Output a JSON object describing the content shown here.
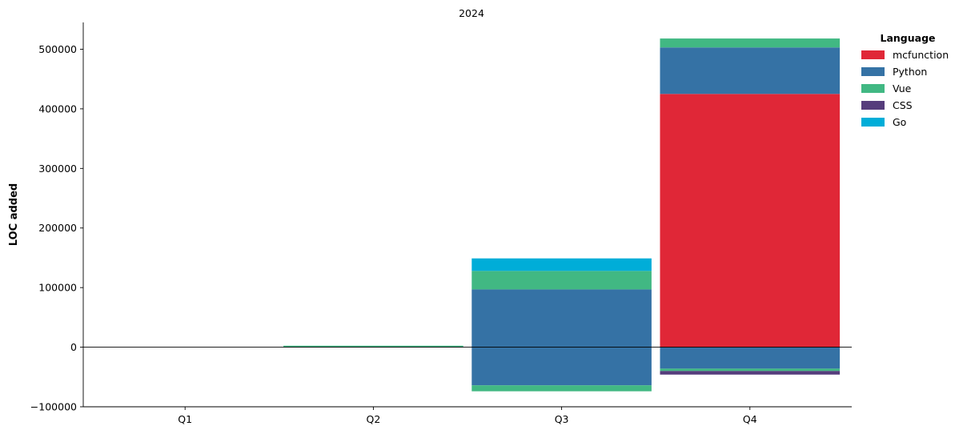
{
  "chart_data": {
    "type": "bar",
    "stacked": true,
    "title": "2024",
    "xlabel": "",
    "ylabel": "LOC added",
    "categories": [
      "Q1",
      "Q2",
      "Q3",
      "Q4"
    ],
    "ylim": [
      -100000,
      545000
    ],
    "yticks": [
      -100000,
      0,
      100000,
      200000,
      300000,
      400000,
      500000
    ],
    "ytick_labels": [
      "−100000",
      "0",
      "100000",
      "200000",
      "300000",
      "400000",
      "500000"
    ],
    "grid": false,
    "zero_line": true,
    "legend": {
      "title": "Language",
      "placement": "top-right, outside plot"
    },
    "series": [
      {
        "name": "mcfunction",
        "color": "#e02737",
        "values": [
          0,
          0,
          0,
          425000
        ]
      },
      {
        "name": "Python",
        "color": "#3572a5",
        "values": [
          0,
          0,
          97000,
          78000
        ]
      },
      {
        "name": "Vue",
        "color": "#41b883",
        "values": [
          0,
          2500,
          31000,
          15000
        ]
      },
      {
        "name": "CSS",
        "color": "#563d7c",
        "values": [
          0,
          0,
          0,
          0
        ]
      },
      {
        "name": "Go",
        "color": "#00add8",
        "values": [
          0,
          0,
          21000,
          0
        ]
      }
    ],
    "negative_series": [
      {
        "name": "Python",
        "color": "#3572a5",
        "values": [
          0,
          0,
          -64000,
          -36000
        ]
      },
      {
        "name": "Vue",
        "color": "#41b883",
        "values": [
          0,
          0,
          -10000,
          -4000
        ]
      },
      {
        "name": "CSS",
        "color": "#563d7c",
        "values": [
          0,
          0,
          0,
          -6000
        ]
      }
    ]
  }
}
